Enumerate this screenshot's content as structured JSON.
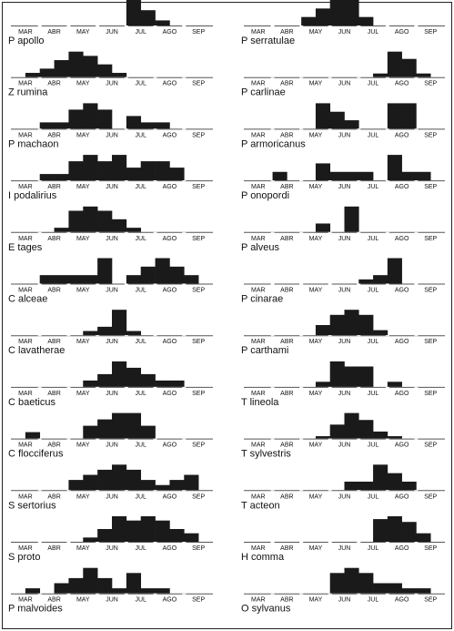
{
  "months": [
    "MAR",
    "ABR",
    "MAY",
    "JUN",
    "JUL",
    "AGO",
    "SEP"
  ],
  "bar_color": "#1a1a1a",
  "axis_color": "#555555",
  "border_color": "#222222",
  "chart_data": [
    {
      "type": "bar",
      "species": "P apollo",
      "column": "left",
      "values": [
        0,
        0,
        0,
        0,
        0,
        0,
        0,
        0,
        5,
        3,
        1,
        0,
        0,
        0
      ]
    },
    {
      "type": "bar",
      "species": "Z rumina",
      "column": "left",
      "values": [
        0,
        1,
        2,
        4,
        6,
        5,
        3,
        1,
        0,
        0,
        0,
        0,
        0,
        0
      ]
    },
    {
      "type": "bar",
      "species": "P machaon",
      "column": "left",
      "values": [
        0,
        0,
        1,
        1,
        3,
        4,
        3,
        0,
        2,
        1,
        1,
        0,
        0,
        0
      ]
    },
    {
      "type": "bar",
      "species": "I podalirius",
      "column": "left",
      "values": [
        0,
        0,
        1,
        1,
        3,
        4,
        3,
        4,
        2,
        3,
        3,
        2,
        0,
        0
      ]
    },
    {
      "type": "bar",
      "species": "E tages",
      "column": "left",
      "values": [
        0,
        0,
        0,
        1,
        5,
        6,
        5,
        3,
        1,
        0,
        0,
        0,
        0,
        0
      ]
    },
    {
      "type": "bar",
      "species": "C alceae",
      "column": "left",
      "values": [
        0,
        0,
        1,
        1,
        1,
        1,
        3,
        0,
        1,
        2,
        3,
        2,
        1,
        0
      ]
    },
    {
      "type": "bar",
      "species": "C lavatherae",
      "column": "left",
      "values": [
        0,
        0,
        0,
        0,
        0,
        1,
        2,
        6,
        1,
        0,
        0,
        0,
        0,
        0
      ]
    },
    {
      "type": "bar",
      "species": "C baeticus",
      "column": "left",
      "values": [
        0,
        0,
        0,
        0,
        0,
        1,
        2,
        4,
        3,
        2,
        1,
        1,
        0,
        0
      ]
    },
    {
      "type": "bar",
      "species": "C flocciferus",
      "column": "left",
      "values": [
        0,
        1,
        0,
        0,
        0,
        2,
        3,
        4,
        4,
        2,
        0,
        0,
        0,
        0
      ]
    },
    {
      "type": "bar",
      "species": "S sertorius",
      "column": "left",
      "values": [
        0,
        0,
        0,
        0,
        2,
        3,
        4,
        5,
        4,
        2,
        1,
        2,
        3,
        0
      ]
    },
    {
      "type": "bar",
      "species": "S proto",
      "column": "left",
      "values": [
        0,
        0,
        0,
        0,
        0,
        1,
        3,
        6,
        5,
        6,
        5,
        3,
        2,
        0
      ]
    },
    {
      "type": "bar",
      "species": "P malvoides",
      "column": "left",
      "values": [
        0,
        1,
        0,
        2,
        3,
        5,
        3,
        1,
        4,
        1,
        1,
        0,
        0,
        0
      ]
    },
    {
      "type": "bar",
      "species": "P serratulae",
      "column": "right",
      "values": [
        0,
        0,
        0,
        0,
        1,
        2,
        3,
        3,
        1,
        0,
        0,
        0,
        0,
        0
      ]
    },
    {
      "type": "bar",
      "species": "P carlinae",
      "column": "right",
      "values": [
        0,
        0,
        0,
        0,
        0,
        0,
        0,
        0,
        0,
        1,
        7,
        5,
        1,
        0
      ]
    },
    {
      "type": "bar",
      "species": "P armoricanus",
      "column": "right",
      "values": [
        0,
        0,
        0,
        0,
        0,
        3,
        2,
        1,
        0,
        0,
        3,
        3,
        0,
        0
      ]
    },
    {
      "type": "bar",
      "species": "P onopordi",
      "column": "right",
      "values": [
        0,
        0,
        1,
        0,
        0,
        2,
        1,
        1,
        1,
        0,
        3,
        1,
        1,
        0
      ]
    },
    {
      "type": "bar",
      "species": "P alveus",
      "column": "right",
      "values": [
        0,
        0,
        0,
        0,
        0,
        1,
        0,
        3,
        0,
        0,
        0,
        0,
        0,
        0
      ]
    },
    {
      "type": "bar",
      "species": "P cinarae",
      "column": "right",
      "values": [
        0,
        0,
        0,
        0,
        0,
        0,
        0,
        0,
        1,
        2,
        6,
        0,
        0,
        0
      ]
    },
    {
      "type": "bar",
      "species": "P carthami",
      "column": "right",
      "values": [
        0,
        0,
        0,
        0,
        0,
        2,
        4,
        5,
        4,
        1,
        0,
        0,
        0,
        0
      ]
    },
    {
      "type": "bar",
      "species": "T lineola",
      "column": "right",
      "values": [
        0,
        0,
        0,
        0,
        0,
        1,
        5,
        4,
        4,
        0,
        1,
        0,
        0,
        0
      ]
    },
    {
      "type": "bar",
      "species": "T sylvestris",
      "column": "right",
      "values": [
        0,
        0,
        0,
        0,
        0,
        1,
        6,
        11,
        8,
        3,
        1,
        0,
        0,
        0
      ]
    },
    {
      "type": "bar",
      "species": "T acteon",
      "column": "right",
      "values": [
        0,
        0,
        0,
        0,
        0,
        0,
        0,
        2,
        2,
        6,
        4,
        2,
        0,
        0
      ]
    },
    {
      "type": "bar",
      "species": "H comma",
      "column": "right",
      "values": [
        0,
        0,
        0,
        0,
        0,
        0,
        0,
        0,
        0,
        8,
        9,
        7,
        3,
        0
      ]
    },
    {
      "type": "bar",
      "species": "O sylvanus",
      "column": "right",
      "values": [
        0,
        0,
        0,
        0,
        0,
        0,
        4,
        5,
        4,
        2,
        2,
        1,
        1,
        0
      ]
    }
  ]
}
